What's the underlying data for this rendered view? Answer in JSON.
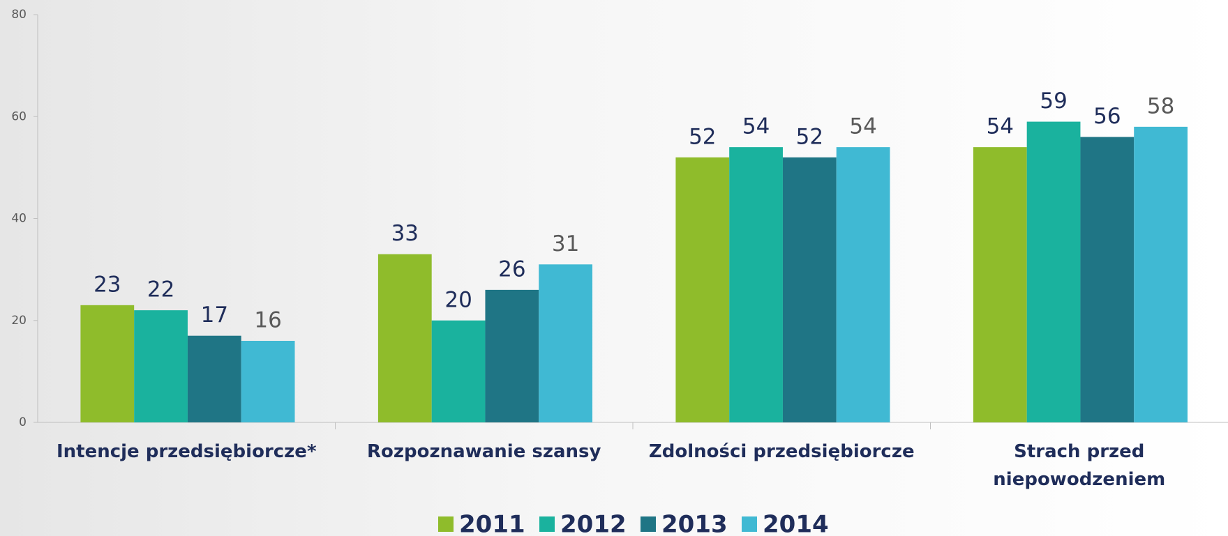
{
  "chart_data": {
    "type": "bar",
    "categories": [
      "Intencje przedsiębiorcze*",
      "Rozpoznawanie szansy",
      "Zdolności przedsiębiorcze",
      "Strach przed\nniepowodzeniem"
    ],
    "series": [
      {
        "name": "2011",
        "color": "#8fbc2b",
        "label_color": "#1f2d5a",
        "values": [
          23,
          33,
          52,
          54
        ]
      },
      {
        "name": "2012",
        "color": "#1ab29e",
        "label_color": "#1f2d5a",
        "values": [
          22,
          20,
          54,
          59
        ]
      },
      {
        "name": "2013",
        "color": "#1f7585",
        "label_color": "#1f2d5a",
        "values": [
          17,
          26,
          52,
          56
        ]
      },
      {
        "name": "2014",
        "color": "#40b9d3",
        "label_color": "#595959",
        "values": [
          16,
          31,
          54,
          58
        ]
      }
    ],
    "ylim": [
      0,
      80
    ],
    "yticks": [
      0,
      20,
      40,
      60,
      80
    ],
    "grid": false,
    "legend": "bottom"
  }
}
